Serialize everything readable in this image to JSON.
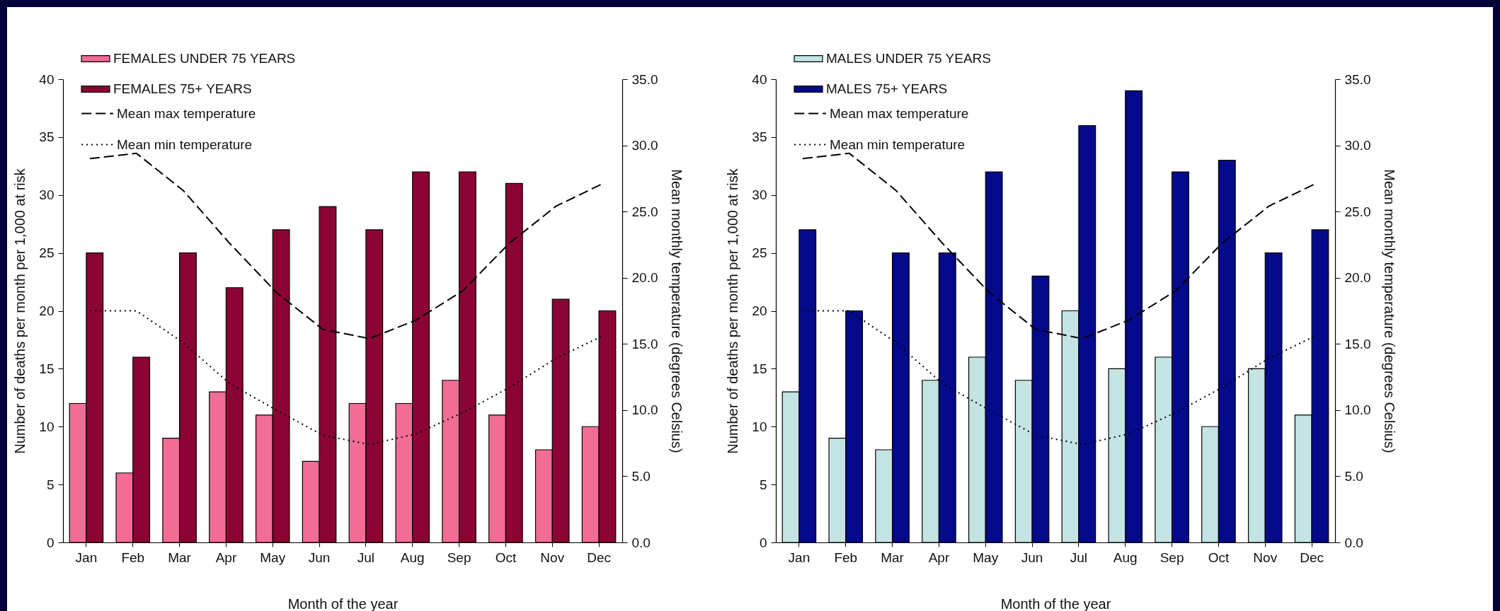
{
  "chart_data": [
    {
      "type": "bar",
      "xlabel": "Month of the year",
      "ylabel": "Number of deaths per month per 1,000 at risk",
      "y2label": "Mean monthly temperature (degrees Celsius)",
      "categories": [
        "Jan",
        "Feb",
        "Mar",
        "Apr",
        "May",
        "Jun",
        "Jul",
        "Aug",
        "Sep",
        "Oct",
        "Nov",
        "Dec"
      ],
      "series": [
        {
          "name": "FEMALES UNDER 75 YEARS",
          "color": "#f26d96",
          "values": [
            12,
            6,
            9,
            13,
            11,
            7,
            12,
            12,
            14,
            11,
            8,
            10
          ]
        },
        {
          "name": "FEMALES 75+ YEARS",
          "color": "#8a0434",
          "values": [
            25,
            16,
            25,
            22,
            27,
            29,
            27,
            32,
            32,
            31,
            21,
            20
          ]
        },
        {
          "name": "Mean max temperature",
          "type": "line",
          "axis": "y2",
          "line_style": "dashed",
          "color": "#000000",
          "values": [
            29.0,
            29.4,
            26.6,
            22.6,
            18.9,
            16.1,
            15.4,
            16.8,
            19.0,
            22.6,
            25.4,
            27.1
          ]
        },
        {
          "name": "Mean min temperature",
          "type": "line",
          "axis": "y2",
          "line_style": "dotted",
          "color": "#000000",
          "values": [
            17.5,
            17.5,
            15.1,
            12.0,
            10.0,
            8.1,
            7.4,
            8.2,
            9.8,
            11.7,
            13.9,
            15.6
          ]
        }
      ],
      "ylim": [
        0,
        40
      ],
      "yticks": [
        0,
        5,
        10,
        15,
        20,
        25,
        30,
        35,
        40
      ],
      "y2lim": [
        0,
        35
      ],
      "y2ticks": [
        {
          "value": 0,
          "label": "0.0"
        },
        {
          "value": 5,
          "label": "5.0"
        },
        {
          "value": 10,
          "label": "10.0"
        },
        {
          "value": 15,
          "label": "15.0"
        },
        {
          "value": 20,
          "label": "20.0"
        },
        {
          "value": 25,
          "label": "25.0"
        },
        {
          "value": 30,
          "label": "30.0"
        },
        {
          "value": 35,
          "label": "35.0"
        }
      ],
      "legend": "top left"
    },
    {
      "type": "bar",
      "xlabel": "Month of the year",
      "ylabel": "Number of deaths per month per 1,000 at risk",
      "y2label": "Mean monthly temperature (degrees Celsius)",
      "categories": [
        "Jan",
        "Feb",
        "Mar",
        "Apr",
        "May",
        "Jun",
        "Jul",
        "Aug",
        "Sep",
        "Oct",
        "Nov",
        "Dec"
      ],
      "series": [
        {
          "name": "MALES UNDER 75 YEARS",
          "color": "#c4e3e3",
          "values": [
            13,
            9,
            8,
            14,
            16,
            14,
            20,
            15,
            16,
            10,
            15,
            11
          ]
        },
        {
          "name": "MALES 75+ YEARS",
          "color": "#040a8a",
          "values": [
            27,
            20,
            25,
            25,
            32,
            23,
            36,
            39,
            32,
            33,
            25,
            27
          ]
        },
        {
          "name": "Mean max temperature",
          "type": "line",
          "axis": "y2",
          "line_style": "dashed",
          "color": "#000000",
          "values": [
            29.0,
            29.4,
            26.6,
            22.6,
            18.9,
            16.1,
            15.4,
            16.8,
            19.0,
            22.6,
            25.4,
            27.1
          ]
        },
        {
          "name": "Mean min temperature",
          "type": "line",
          "axis": "y2",
          "line_style": "dotted",
          "color": "#000000",
          "values": [
            17.5,
            17.5,
            15.1,
            12.0,
            10.0,
            8.1,
            7.4,
            8.2,
            9.8,
            11.7,
            13.9,
            15.6
          ]
        }
      ],
      "ylim": [
        0,
        40
      ],
      "yticks": [
        0,
        5,
        10,
        15,
        20,
        25,
        30,
        35,
        40
      ],
      "y2lim": [
        0,
        35
      ],
      "y2ticks": [
        {
          "value": 0,
          "label": "0.0"
        },
        {
          "value": 5,
          "label": "5.0"
        },
        {
          "value": 10,
          "label": "10.0"
        },
        {
          "value": 15,
          "label": "15.0"
        },
        {
          "value": 20,
          "label": "20.0"
        },
        {
          "value": 25,
          "label": "25.0"
        },
        {
          "value": 30,
          "label": "30.0"
        },
        {
          "value": 35,
          "label": "35.0"
        }
      ],
      "legend": "top left"
    }
  ]
}
